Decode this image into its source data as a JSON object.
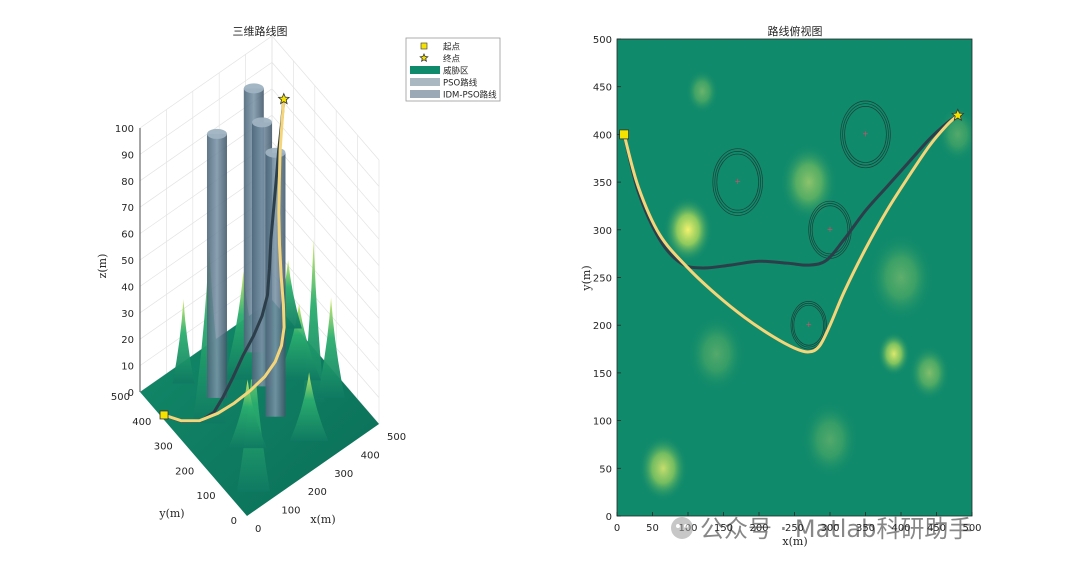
{
  "chart_data": [
    {
      "type": "surface3d",
      "title": "三维路线图",
      "xlabel": "x(m)",
      "ylabel": "y(m)",
      "zlabel": "z(m)",
      "xlim": [
        0,
        500
      ],
      "ylim": [
        0,
        500
      ],
      "zlim": [
        0,
        100
      ],
      "xticks": [
        "0",
        "100",
        "200",
        "300",
        "400",
        "500"
      ],
      "yticks": [
        "0",
        "100",
        "200",
        "300",
        "400",
        "500"
      ],
      "zticks": [
        "0",
        "10",
        "20",
        "30",
        "40",
        "50",
        "60",
        "70",
        "80",
        "90",
        "100"
      ],
      "grid": true,
      "legend_position": "top-right",
      "legend": [
        {
          "label": "起点",
          "marker": "square",
          "color": "#f5e200"
        },
        {
          "label": "终点",
          "marker": "star",
          "color": "#f5e200"
        },
        {
          "label": "威胁区",
          "marker": "patch",
          "color": "#0f8a6b"
        },
        {
          "label": "PSO路线",
          "marker": "patch",
          "color": "#aab8c2"
        },
        {
          "label": "IDM-PSO路线",
          "marker": "patch",
          "color": "#9aa9b5"
        }
      ],
      "start": {
        "x": 10,
        "y": 400,
        "z": 0
      },
      "end": {
        "x": 480,
        "y": 420,
        "z": 85
      },
      "threat_cylinders": [
        {
          "x": 170,
          "y": 350,
          "height": 100
        },
        {
          "x": 350,
          "y": 400,
          "height": 100
        },
        {
          "x": 300,
          "y": 300,
          "height": 100
        },
        {
          "x": 270,
          "y": 200,
          "height": 100
        }
      ]
    },
    {
      "type": "contour_top_view",
      "title": "路线俯视图",
      "xlabel": "x(m)",
      "ylabel": "y(m)",
      "xlim": [
        0,
        500
      ],
      "ylim": [
        0,
        500
      ],
      "xticks": [
        0,
        50,
        100,
        150,
        200,
        250,
        300,
        350,
        400,
        450,
        500
      ],
      "yticks": [
        0,
        50,
        100,
        150,
        200,
        250,
        300,
        350,
        400,
        450,
        500
      ],
      "background_color": "#0f8a6b",
      "start": {
        "x": 10,
        "y": 400
      },
      "end": {
        "x": 480,
        "y": 420
      },
      "threats": [
        {
          "x": 170,
          "y": 350,
          "r": 35
        },
        {
          "x": 350,
          "y": 400,
          "r": 35
        },
        {
          "x": 300,
          "y": 300,
          "r": 30
        },
        {
          "x": 270,
          "y": 200,
          "r": 25
        }
      ],
      "hills": [
        {
          "x": 100,
          "y": 300,
          "intensity": 1.0,
          "r": 30
        },
        {
          "x": 65,
          "y": 50,
          "intensity": 0.8,
          "r": 30
        },
        {
          "x": 390,
          "y": 170,
          "intensity": 0.9,
          "r": 20
        },
        {
          "x": 440,
          "y": 150,
          "intensity": 0.5,
          "r": 25
        },
        {
          "x": 270,
          "y": 350,
          "intensity": 0.55,
          "r": 35
        },
        {
          "x": 120,
          "y": 445,
          "intensity": 0.4,
          "r": 20
        },
        {
          "x": 400,
          "y": 250,
          "intensity": 0.35,
          "r": 40
        },
        {
          "x": 140,
          "y": 170,
          "intensity": 0.3,
          "r": 35
        },
        {
          "x": 300,
          "y": 80,
          "intensity": 0.3,
          "r": 35
        },
        {
          "x": 480,
          "y": 400,
          "intensity": 0.3,
          "r": 25
        }
      ],
      "series": [
        {
          "name": "PSO路线",
          "color": "#2c3e4a",
          "x": [
            10,
            30,
            60,
            90,
            120,
            160,
            200,
            240,
            270,
            295,
            320,
            350,
            380,
            410,
            440,
            465,
            480
          ],
          "y": [
            400,
            340,
            290,
            265,
            260,
            263,
            267,
            265,
            263,
            268,
            290,
            320,
            345,
            370,
            395,
            412,
            420
          ]
        },
        {
          "name": "IDM-PSO路线",
          "color": "#f5d57a",
          "x": [
            10,
            30,
            60,
            100,
            140,
            180,
            220,
            250,
            270,
            285,
            300,
            320,
            350,
            380,
            410,
            440,
            465,
            480
          ],
          "y": [
            400,
            345,
            295,
            260,
            232,
            208,
            188,
            176,
            172,
            178,
            200,
            235,
            280,
            320,
            355,
            388,
            410,
            420
          ]
        }
      ]
    }
  ],
  "watermark": "公众号 · Matlab科研助手"
}
